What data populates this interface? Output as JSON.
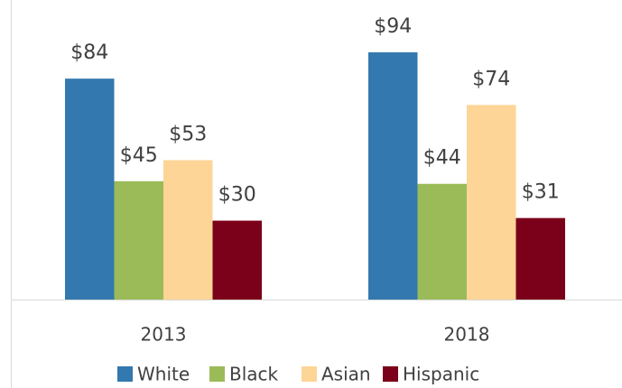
{
  "chart_data": {
    "type": "bar",
    "categories": [
      "2013",
      "2018"
    ],
    "series": [
      {
        "name": "White",
        "color": "#3378ae",
        "values": [
          84,
          94
        ],
        "value_labels": [
          "$84",
          "$94"
        ]
      },
      {
        "name": "Black",
        "color": "#9bbb59",
        "values": [
          45,
          44
        ],
        "value_labels": [
          "$45",
          "$44"
        ]
      },
      {
        "name": "Asian",
        "color": "#fdd597",
        "values": [
          53,
          74
        ],
        "value_labels": [
          "$53",
          "$74"
        ]
      },
      {
        "name": "Hispanic",
        "color": "#7b0019",
        "values": [
          30,
          31
        ],
        "value_labels": [
          "$30",
          "$31"
        ]
      }
    ],
    "legend": "bottom"
  }
}
